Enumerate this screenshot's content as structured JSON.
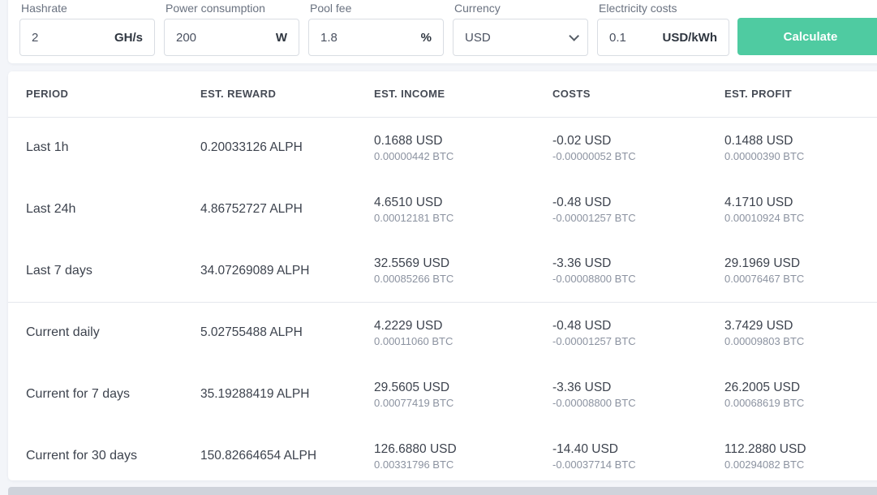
{
  "form": {
    "fields": [
      {
        "label": "Hashrate",
        "value": "2",
        "unit": "GH/s"
      },
      {
        "label": "Power consumption",
        "value": "200",
        "unit": "W"
      },
      {
        "label": "Pool fee",
        "value": "1.8",
        "unit": "%"
      },
      {
        "label": "Currency",
        "value": "USD"
      },
      {
        "label": "Electricity costs",
        "value": "0.1",
        "unit": "USD/kWh"
      }
    ],
    "calculate_label": "Calculate",
    "button_color": "#4fcba1"
  },
  "table": {
    "headers": [
      "PERIOD",
      "EST. REWARD",
      "EST. INCOME",
      "COSTS",
      "EST. PROFIT"
    ],
    "rows": [
      {
        "period": "Last 1h",
        "reward": "0.20033126 ALPH",
        "income_fiat": "0.1688 USD",
        "income_btc": "0.00000442 BTC",
        "costs_fiat": "-0.02 USD",
        "costs_btc": "-0.00000052 BTC",
        "profit_fiat": "0.1488 USD",
        "profit_btc": "0.00000390 BTC"
      },
      {
        "period": "Last 24h",
        "reward": "4.86752727 ALPH",
        "income_fiat": "4.6510 USD",
        "income_btc": "0.00012181 BTC",
        "costs_fiat": "-0.48 USD",
        "costs_btc": "-0.00001257 BTC",
        "profit_fiat": "4.1710 USD",
        "profit_btc": "0.00010924 BTC"
      },
      {
        "period": "Last 7 days",
        "reward": "34.07269089 ALPH",
        "income_fiat": "32.5569 USD",
        "income_btc": "0.00085266 BTC",
        "costs_fiat": "-3.36 USD",
        "costs_btc": "-0.00008800 BTC",
        "profit_fiat": "29.1969 USD",
        "profit_btc": "0.00076467 BTC"
      },
      {
        "period": "Current daily",
        "reward": "5.02755488 ALPH",
        "income_fiat": "4.2229 USD",
        "income_btc": "0.00011060 BTC",
        "costs_fiat": "-0.48 USD",
        "costs_btc": "-0.00001257 BTC",
        "profit_fiat": "3.7429 USD",
        "profit_btc": "0.00009803 BTC"
      },
      {
        "period": "Current for 7 days",
        "reward": "35.19288419 ALPH",
        "income_fiat": "29.5605 USD",
        "income_btc": "0.00077419 BTC",
        "costs_fiat": "-3.36 USD",
        "costs_btc": "-0.00008800 BTC",
        "profit_fiat": "26.2005 USD",
        "profit_btc": "0.00068619 BTC"
      },
      {
        "period": "Current for 30 days",
        "reward": "150.82664654 ALPH",
        "income_fiat": "126.6880 USD",
        "income_btc": "0.00331796 BTC",
        "costs_fiat": "-14.40 USD",
        "costs_btc": "-0.00037714 BTC",
        "profit_fiat": "112.2880 USD",
        "profit_btc": "0.00294082 BTC"
      }
    ]
  }
}
